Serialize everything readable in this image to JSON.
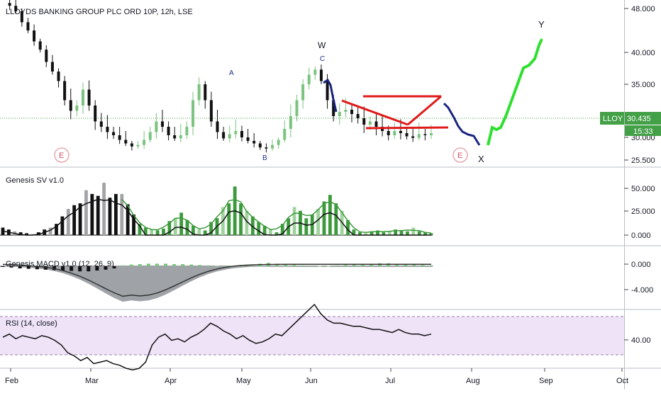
{
  "colors": {
    "up": "#7bc47f",
    "down": "#111111",
    "sv_green": "#3c9a3c",
    "sv_gray": "#a3a3a8",
    "macd_fill": "#9fa3a8",
    "rsi_band": "#efe3f7",
    "price_line": "#3fa33f",
    "tag_green": "#43a047"
  },
  "main": {
    "title": "LLOYDS BANKING GROUP PLC ORD 10P, 12h, LSE",
    "price_ticks": [
      "48.000",
      "40.000",
      "35.000",
      "30.000",
      "25.500"
    ],
    "symbol_tag": "LLOY",
    "last_price": "30.435",
    "countdown": "15:33",
    "event_markers": [
      "E",
      "E"
    ],
    "wave_labels": [
      "A",
      "B",
      "C",
      "W",
      "X",
      "Y"
    ]
  },
  "sv": {
    "title": "Genesis SV v1.0",
    "ticks": [
      "50.000",
      "25.000",
      "0.000"
    ]
  },
  "macd": {
    "title": "Genesis MACD v1.0 (12, 26, 9)",
    "ticks": [
      "0.000",
      "-4.000"
    ]
  },
  "rsi": {
    "title": "RSI (14, close)",
    "ticks": [
      "40.00"
    ]
  },
  "x_axis": {
    "months": [
      "Feb",
      "Mar",
      "Apr",
      "May",
      "Jun",
      "Jul",
      "Aug",
      "Sep",
      "Oct"
    ]
  },
  "chart_data": [
    {
      "type": "candlestick",
      "title": "LLOYDS BANKING GROUP PLC ORD 10P, 12h, LSE",
      "x_range": [
        "Feb",
        "Oct"
      ],
      "y_range": [
        25.5,
        48
      ],
      "last": 30.435,
      "close_series": [
        49,
        48.5,
        47.5,
        45.5,
        44,
        42,
        40.5,
        38.5,
        37,
        35.5,
        33.5,
        32.5,
        33,
        34.5,
        33,
        31.5,
        31,
        30.5,
        30.2,
        29.5,
        28.8,
        28.2,
        28.5,
        29.5,
        30.5,
        31.5,
        31,
        30.2,
        29.8,
        30.2,
        31,
        33.5,
        35,
        33.5,
        31.5,
        30.5,
        29.8,
        30.3,
        30.6,
        30,
        29.3,
        28.8,
        28,
        27.8,
        28.5,
        29.5,
        30.8,
        32,
        33.5,
        35,
        36.5,
        37.3,
        35.5,
        33.5,
        32,
        32.4,
        32.6,
        32.2,
        31.8,
        31.2,
        31.5,
        31,
        30.6,
        30.2,
        30.6,
        30.4,
        30.1,
        29.9,
        30.3,
        30.2,
        30.4
      ]
    },
    {
      "type": "bar",
      "title": "Genesis SV v1.0",
      "y_range": [
        -5,
        55
      ],
      "values": [
        8,
        6,
        4,
        3,
        2,
        1,
        3,
        6,
        8,
        12,
        20,
        28,
        32,
        34,
        48,
        44,
        42,
        56,
        40,
        44,
        44,
        33,
        22,
        12,
        8,
        6,
        5,
        7,
        15,
        18,
        24,
        16,
        10,
        6,
        5,
        14,
        18,
        30,
        34,
        52,
        34,
        26,
        20,
        14,
        10,
        6,
        3,
        12,
        18,
        30,
        26,
        18,
        22,
        28,
        36,
        43,
        34,
        26,
        16,
        6,
        3,
        2,
        4,
        5,
        3,
        4,
        6,
        5,
        4,
        8,
        4,
        3,
        2
      ]
    },
    {
      "type": "area",
      "title": "Genesis MACD v1.0 (12, 26, 9)",
      "y_range": [
        -6.5,
        1
      ],
      "histogram": [
        -0.1,
        -0.3,
        -0.5,
        -0.6,
        -0.7,
        -0.8,
        -0.9,
        -1.0,
        -1.1,
        -1.2,
        -1.2,
        -1.0,
        -0.8,
        -0.5,
        0.2,
        0.4,
        0.5,
        0.6,
        0.6,
        0.6,
        0.5,
        0.5,
        0.4,
        0.3,
        0.2,
        0.1,
        0.0,
        0.0,
        0.1,
        0.3,
        0.6,
        0.8,
        0.6,
        0.4,
        0.3,
        0.2,
        0.0,
        0.1,
        0.1,
        0.2,
        0.3,
        0.4,
        0.5,
        0.6,
        0.7,
        0.7,
        0.6,
        0.5,
        0.4,
        0.3,
        0.2
      ]
    },
    {
      "type": "line",
      "title": "RSI (14, close)",
      "y_range": [
        20,
        80
      ],
      "values": [
        45,
        47,
        44,
        46,
        45,
        44,
        46,
        45,
        43,
        40,
        35,
        33,
        30,
        32,
        28,
        29,
        30,
        28,
        27,
        25,
        24,
        25,
        29,
        40,
        45,
        47,
        43,
        44,
        42,
        45,
        47,
        50,
        54,
        52,
        49,
        47,
        44,
        46,
        43,
        41,
        42,
        44,
        47,
        46,
        50,
        54,
        58,
        62,
        66,
        60,
        56,
        54,
        54,
        53,
        52,
        52,
        51,
        50,
        50,
        49,
        48,
        50,
        48,
        47,
        47,
        46,
        47
      ]
    }
  ]
}
